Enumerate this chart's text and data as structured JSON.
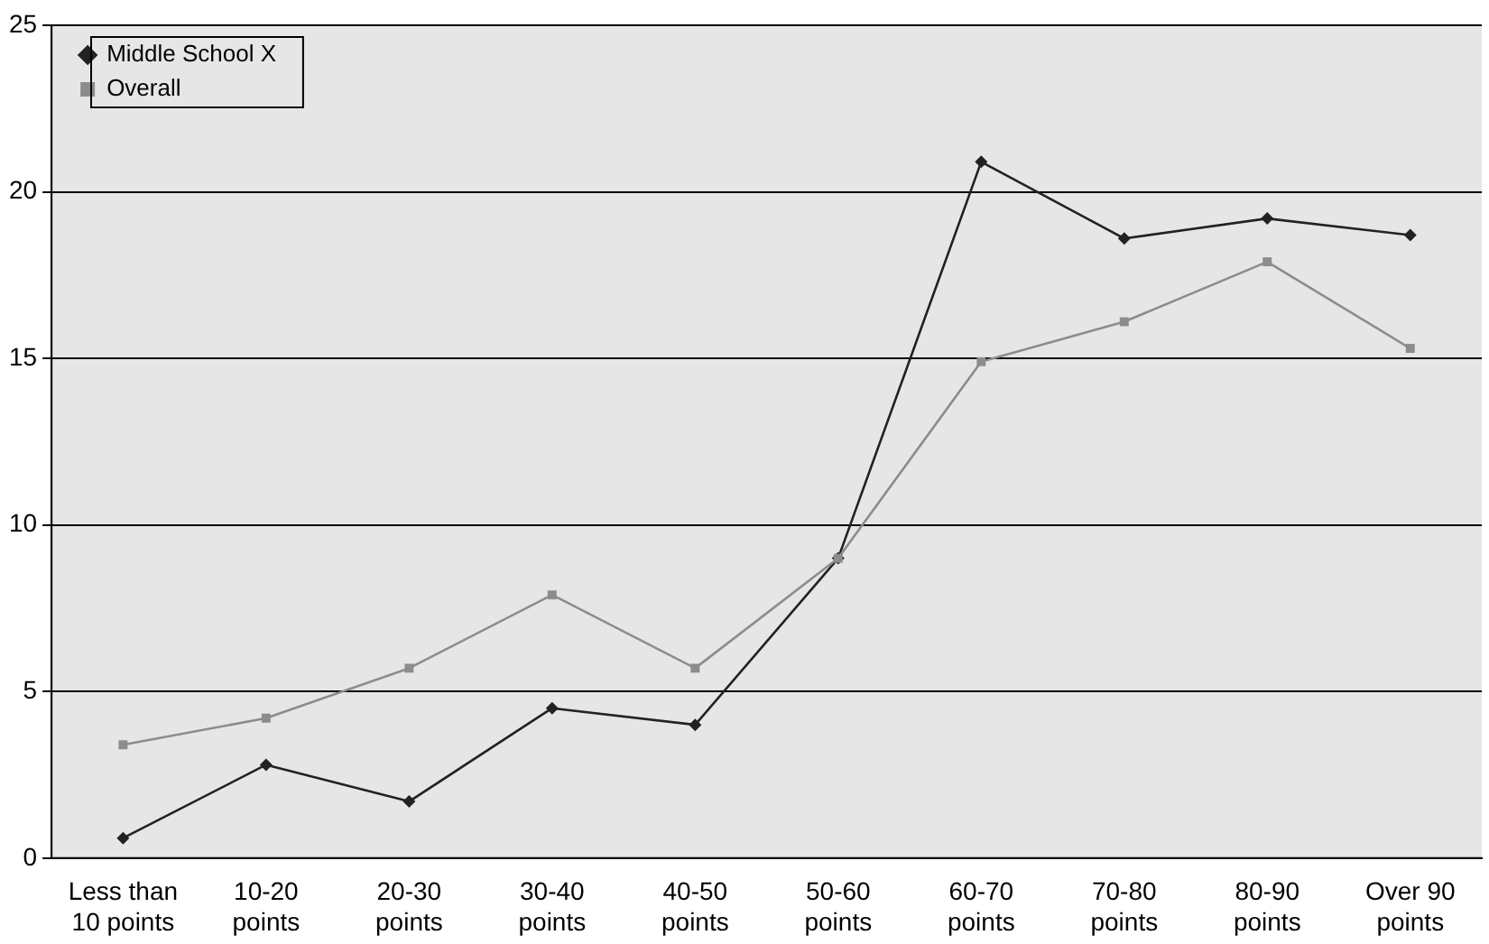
{
  "chart_data": {
    "type": "line",
    "categories": [
      "Less than 10 points",
      "10-20 points",
      "20-30 points",
      "30-40 points",
      "40-50 points",
      "50-60 points",
      "60-70 points",
      "70-80 points",
      "80-90 points",
      "Over 90 points"
    ],
    "series": [
      {
        "name": "Middle School X",
        "color": "#222222",
        "marker": "diamond",
        "values": [
          0.6,
          2.8,
          1.7,
          4.5,
          4.0,
          9.0,
          20.9,
          18.6,
          19.2,
          18.7
        ]
      },
      {
        "name": "Overall",
        "color": "#8c8c8c",
        "marker": "square",
        "values": [
          3.4,
          4.2,
          5.7,
          7.9,
          5.7,
          9.0,
          14.9,
          16.1,
          17.9,
          15.3
        ]
      }
    ],
    "ylim": [
      0,
      25
    ],
    "yticks": [
      0,
      5,
      10,
      15,
      20,
      25
    ],
    "grid": "y",
    "legend": "top left",
    "line_style": "solid"
  }
}
